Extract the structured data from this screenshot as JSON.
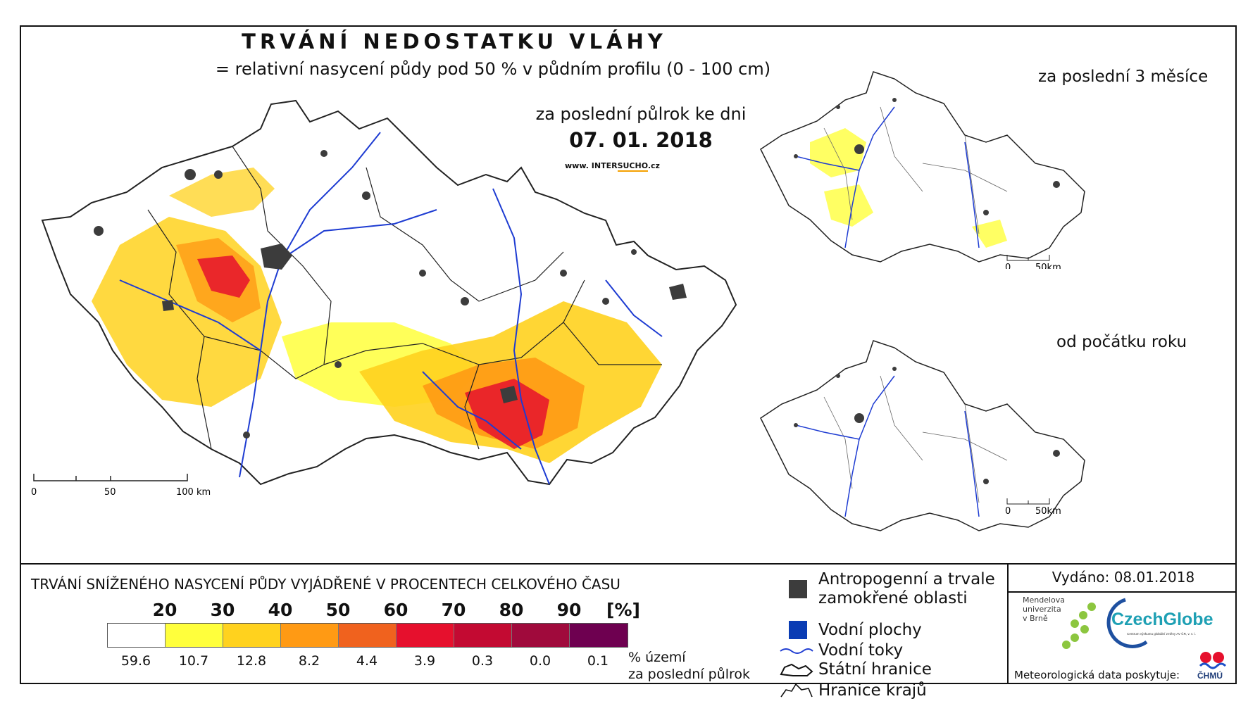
{
  "header": {
    "title": "TRVÁNÍ NEDOSTATKU VLÁHY",
    "subtitle": "= relativní nasycení půdy pod 50 % v půdním profilu (0 - 100 cm)",
    "period_label": "za poslední půlrok ke dni",
    "date": "07. 01. 2018",
    "website_prefix": "www. INTER",
    "website_highlight": "SUCHO",
    "website_suffix": ".cz"
  },
  "main_map": {
    "scale": {
      "tick0": "0",
      "tick1": "50",
      "tick2": "100 km"
    }
  },
  "inset_top": {
    "title": "za poslední 3 měsíce",
    "scale": {
      "tick0": "0",
      "tick1": "50km"
    }
  },
  "inset_bottom": {
    "title": "od počátku roku",
    "scale": {
      "tick0": "0",
      "tick1": "50km"
    }
  },
  "legend": {
    "title": "TRVÁNÍ SNÍŽENÉHO NASYCENÍ PŮDY VYJÁDŘENÉ V PROCENTECH CELKOVÉHO ČASU",
    "thresholds": [
      "20",
      "30",
      "40",
      "50",
      "60",
      "70",
      "80",
      "90",
      "[%]"
    ],
    "classes": [
      {
        "color": "#ffffff",
        "percent": "59.6"
      },
      {
        "color": "#ffff3c",
        "percent": "10.7"
      },
      {
        "color": "#ffd21e",
        "percent": "12.8"
      },
      {
        "color": "#ff9a14",
        "percent": "8.2"
      },
      {
        "color": "#f0621e",
        "percent": "4.4"
      },
      {
        "color": "#e6102d",
        "percent": "3.9"
      },
      {
        "color": "#c30a32",
        "percent": "0.3"
      },
      {
        "color": "#a00a3c",
        "percent": "0.0"
      },
      {
        "color": "#6e0050",
        "percent": "0.1"
      }
    ],
    "percent_label_line1": "% území",
    "percent_label_line2": "za poslední půlrok"
  },
  "symbols": {
    "urban": {
      "label1": "Antropogenní a trvale",
      "label2": "zamokřené oblasti",
      "color": "#3c3c3c"
    },
    "water": {
      "label": "Vodní plochy",
      "color": "#0a3cb4"
    },
    "rivers": {
      "label": "Vodní toky",
      "color": "#1e3cd2"
    },
    "state_border": {
      "label": "Státní hranice"
    },
    "region_border": {
      "label": "Hranice krajů"
    }
  },
  "footer": {
    "issued": "Vydáno: 08.01.2018",
    "mendel_line1": "Mendelova",
    "mendel_line2": "univerzita",
    "mendel_line3": "v Brně",
    "czechglobe": "CzechGlobe",
    "czechglobe_sub": "Centrum výzkumu globální změny AV ČR, v. v. i.",
    "meteo": "Meteorologická data poskytuje:",
    "chmu": "ČHMÚ"
  }
}
